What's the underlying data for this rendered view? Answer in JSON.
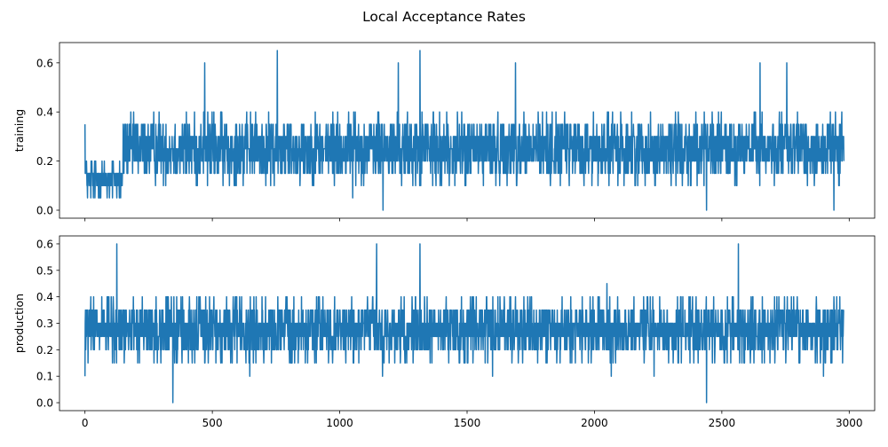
{
  "figure": {
    "title": "Local Acceptance Rates"
  },
  "chart_data": [
    {
      "type": "line",
      "ylabel": "training",
      "xlim": [
        -100,
        3100
      ],
      "ylim": [
        -0.0325,
        0.6825
      ],
      "xticks": [
        0,
        500,
        1000,
        1500,
        2000,
        2500,
        3000
      ],
      "xtick_labels_visible": false,
      "yticks": [
        0.0,
        0.2,
        0.4,
        0.6
      ],
      "ytick_labels": [
        "0.0",
        "0.2",
        "0.4",
        "0.6"
      ],
      "grid": false,
      "color": "#1f77b4",
      "n_points": 2980,
      "x_range": [
        0,
        2979
      ],
      "series_profile": [
        {
          "x_from": 0,
          "x_to": 150,
          "typical_range": [
            0.0,
            0.25
          ]
        },
        {
          "x_from": 150,
          "x_to": 2979,
          "typical_range": [
            0.05,
            0.45
          ]
        }
      ],
      "notable_points": [
        {
          "x": 0,
          "y": 0.35
        },
        {
          "x": 470,
          "y": 0.6
        },
        {
          "x": 755,
          "y": 0.65
        },
        {
          "x": 1230,
          "y": 0.6
        },
        {
          "x": 1315,
          "y": 0.65
        },
        {
          "x": 1690,
          "y": 0.6
        },
        {
          "x": 2650,
          "y": 0.6
        },
        {
          "x": 2755,
          "y": 0.6
        },
        {
          "x": 1170,
          "y": 0.0
        },
        {
          "x": 2440,
          "y": 0.0
        },
        {
          "x": 2940,
          "y": 0.0
        }
      ]
    },
    {
      "type": "line",
      "ylabel": "production",
      "xlim": [
        -100,
        3100
      ],
      "ylim": [
        -0.03,
        0.63
      ],
      "xticks": [
        0,
        500,
        1000,
        1500,
        2000,
        2500,
        3000
      ],
      "xtick_labels": [
        "0",
        "500",
        "1000",
        "1500",
        "2000",
        "2500",
        "3000"
      ],
      "yticks": [
        0.0,
        0.1,
        0.2,
        0.3,
        0.4,
        0.5,
        0.6
      ],
      "ytick_labels": [
        "0.0",
        "0.1",
        "0.2",
        "0.3",
        "0.4",
        "0.5",
        "0.6"
      ],
      "grid": false,
      "color": "#1f77b4",
      "n_points": 2980,
      "x_range": [
        0,
        2979
      ],
      "series_profile": [
        {
          "x_from": 0,
          "x_to": 2979,
          "typical_range": [
            0.1,
            0.45
          ]
        }
      ],
      "notable_points": [
        {
          "x": 0,
          "y": 0.1
        },
        {
          "x": 125,
          "y": 0.6
        },
        {
          "x": 1145,
          "y": 0.6
        },
        {
          "x": 1315,
          "y": 0.6
        },
        {
          "x": 2565,
          "y": 0.6
        },
        {
          "x": 345,
          "y": 0.0
        },
        {
          "x": 2440,
          "y": 0.0
        }
      ]
    }
  ]
}
